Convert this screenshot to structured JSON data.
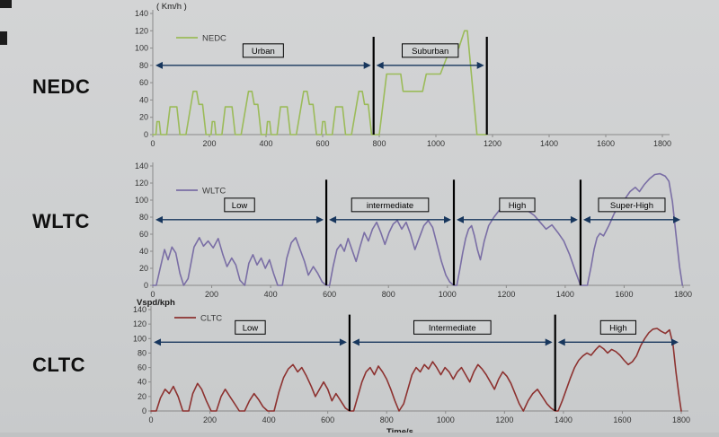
{
  "page": {
    "background": "#cfd1d2",
    "arrow_color": "#17365d",
    "axis_color": "#8a8a8a",
    "text_color": "#1a1a1a"
  },
  "chart_data": [
    {
      "type": "line",
      "side_label": "NEDC",
      "legend": "NEDC",
      "line_color": "#9bbb59",
      "ylabel": "( Km/h )",
      "xlabel": "",
      "xlim": [
        0,
        1800
      ],
      "ylim": [
        0,
        140
      ],
      "x_tick_step": 200,
      "y_tick_step": 20,
      "grid": false,
      "legend_position": "top-left-inside",
      "arrow_level": 80,
      "divider_top": 113,
      "dividers": [
        780,
        1180
      ],
      "phases": [
        {
          "label": "Urban",
          "start": 0,
          "end": 780
        },
        {
          "label": "Suburban",
          "start": 780,
          "end": 1180
        }
      ],
      "points": [
        [
          0,
          0
        ],
        [
          11,
          0
        ],
        [
          15,
          15
        ],
        [
          23,
          15
        ],
        [
          28,
          0
        ],
        [
          49,
          0
        ],
        [
          61,
          32
        ],
        [
          85,
          32
        ],
        [
          96,
          0
        ],
        [
          117,
          0
        ],
        [
          143,
          50
        ],
        [
          155,
          50
        ],
        [
          163,
          35
        ],
        [
          176,
          35
        ],
        [
          188,
          0
        ],
        [
          195,
          0
        ],
        [
          206,
          0
        ],
        [
          210,
          15
        ],
        [
          218,
          15
        ],
        [
          223,
          0
        ],
        [
          244,
          0
        ],
        [
          256,
          32
        ],
        [
          280,
          32
        ],
        [
          291,
          0
        ],
        [
          312,
          0
        ],
        [
          338,
          50
        ],
        [
          350,
          50
        ],
        [
          358,
          35
        ],
        [
          371,
          35
        ],
        [
          383,
          0
        ],
        [
          390,
          0
        ],
        [
          401,
          0
        ],
        [
          405,
          15
        ],
        [
          413,
          15
        ],
        [
          418,
          0
        ],
        [
          439,
          0
        ],
        [
          451,
          32
        ],
        [
          475,
          32
        ],
        [
          486,
          0
        ],
        [
          507,
          0
        ],
        [
          533,
          50
        ],
        [
          545,
          50
        ],
        [
          553,
          35
        ],
        [
          566,
          35
        ],
        [
          578,
          0
        ],
        [
          585,
          0
        ],
        [
          596,
          0
        ],
        [
          600,
          15
        ],
        [
          608,
          15
        ],
        [
          613,
          0
        ],
        [
          634,
          0
        ],
        [
          646,
          32
        ],
        [
          670,
          32
        ],
        [
          681,
          0
        ],
        [
          702,
          0
        ],
        [
          728,
          50
        ],
        [
          740,
          50
        ],
        [
          748,
          35
        ],
        [
          761,
          35
        ],
        [
          773,
          0
        ],
        [
          780,
          0
        ],
        [
          800,
          0
        ],
        [
          826,
          70
        ],
        [
          876,
          70
        ],
        [
          884,
          50
        ],
        [
          953,
          50
        ],
        [
          966,
          70
        ],
        [
          1016,
          70
        ],
        [
          1051,
          100
        ],
        [
          1081,
          100
        ],
        [
          1101,
          120
        ],
        [
          1111,
          120
        ],
        [
          1145,
          0
        ],
        [
          1180,
          0
        ]
      ]
    },
    {
      "type": "line",
      "side_label": "WLTC",
      "legend": "WLTC",
      "line_color": "#7a6ea5",
      "ylabel": "",
      "xlabel": "",
      "xlim": [
        0,
        1800
      ],
      "ylim": [
        0,
        140
      ],
      "x_tick_step": 200,
      "y_tick_step": 20,
      "grid": false,
      "legend_position": "top-left-inside",
      "arrow_level": 77,
      "divider_top": 124,
      "dividers": [
        589,
        1022,
        1452
      ],
      "phases": [
        {
          "label": "Low",
          "start": 0,
          "end": 589
        },
        {
          "label": "intermediate",
          "start": 589,
          "end": 1022
        },
        {
          "label": "High",
          "start": 1022,
          "end": 1452
        },
        {
          "label": "Super-High",
          "start": 1452,
          "end": 1800
        }
      ],
      "points": [
        [
          0,
          0
        ],
        [
          12,
          0
        ],
        [
          25,
          20
        ],
        [
          40,
          42
        ],
        [
          52,
          30
        ],
        [
          65,
          45
        ],
        [
          78,
          38
        ],
        [
          92,
          14
        ],
        [
          105,
          0
        ],
        [
          120,
          8
        ],
        [
          140,
          45
        ],
        [
          158,
          56
        ],
        [
          172,
          46
        ],
        [
          188,
          52
        ],
        [
          205,
          44
        ],
        [
          222,
          55
        ],
        [
          238,
          36
        ],
        [
          252,
          22
        ],
        [
          268,
          32
        ],
        [
          282,
          24
        ],
        [
          296,
          6
        ],
        [
          312,
          0
        ],
        [
          326,
          26
        ],
        [
          340,
          36
        ],
        [
          354,
          24
        ],
        [
          368,
          32
        ],
        [
          382,
          20
        ],
        [
          396,
          30
        ],
        [
          410,
          14
        ],
        [
          424,
          0
        ],
        [
          440,
          0
        ],
        [
          455,
          32
        ],
        [
          470,
          50
        ],
        [
          485,
          56
        ],
        [
          500,
          42
        ],
        [
          515,
          28
        ],
        [
          528,
          12
        ],
        [
          545,
          22
        ],
        [
          560,
          14
        ],
        [
          575,
          4
        ],
        [
          589,
          0
        ],
        [
          600,
          0
        ],
        [
          612,
          22
        ],
        [
          625,
          42
        ],
        [
          638,
          48
        ],
        [
          650,
          40
        ],
        [
          663,
          55
        ],
        [
          676,
          42
        ],
        [
          690,
          28
        ],
        [
          704,
          46
        ],
        [
          718,
          62
        ],
        [
          732,
          52
        ],
        [
          746,
          66
        ],
        [
          760,
          74
        ],
        [
          774,
          62
        ],
        [
          788,
          48
        ],
        [
          802,
          62
        ],
        [
          816,
          72
        ],
        [
          830,
          76
        ],
        [
          845,
          66
        ],
        [
          860,
          74
        ],
        [
          875,
          60
        ],
        [
          890,
          42
        ],
        [
          905,
          56
        ],
        [
          920,
          70
        ],
        [
          935,
          76
        ],
        [
          950,
          68
        ],
        [
          965,
          48
        ],
        [
          980,
          28
        ],
        [
          995,
          12
        ],
        [
          1008,
          4
        ],
        [
          1022,
          0
        ],
        [
          1032,
          0
        ],
        [
          1042,
          18
        ],
        [
          1052,
          38
        ],
        [
          1062,
          55
        ],
        [
          1072,
          66
        ],
        [
          1082,
          70
        ],
        [
          1092,
          58
        ],
        [
          1102,
          42
        ],
        [
          1112,
          30
        ],
        [
          1125,
          52
        ],
        [
          1140,
          70
        ],
        [
          1158,
          80
        ],
        [
          1176,
          88
        ],
        [
          1195,
          93
        ],
        [
          1215,
          96
        ],
        [
          1235,
          97
        ],
        [
          1255,
          92
        ],
        [
          1275,
          87
        ],
        [
          1295,
          82
        ],
        [
          1315,
          74
        ],
        [
          1335,
          66
        ],
        [
          1355,
          71
        ],
        [
          1375,
          62
        ],
        [
          1395,
          52
        ],
        [
          1415,
          36
        ],
        [
          1435,
          16
        ],
        [
          1452,
          0
        ],
        [
          1460,
          0
        ],
        [
          1475,
          0
        ],
        [
          1488,
          22
        ],
        [
          1498,
          42
        ],
        [
          1508,
          56
        ],
        [
          1518,
          61
        ],
        [
          1530,
          58
        ],
        [
          1548,
          70
        ],
        [
          1566,
          84
        ],
        [
          1584,
          95
        ],
        [
          1602,
          101
        ],
        [
          1620,
          110
        ],
        [
          1638,
          115
        ],
        [
          1652,
          110
        ],
        [
          1668,
          118
        ],
        [
          1686,
          125
        ],
        [
          1704,
          130
        ],
        [
          1722,
          131
        ],
        [
          1740,
          128
        ],
        [
          1752,
          122
        ],
        [
          1764,
          98
        ],
        [
          1776,
          60
        ],
        [
          1788,
          22
        ],
        [
          1798,
          0
        ]
      ]
    },
    {
      "type": "line",
      "side_label": "CLTC",
      "legend": "CLTC",
      "line_color": "#8d3230",
      "ylabel": "Vspd/kph",
      "xlabel": "Time/s",
      "xlim": [
        0,
        1800
      ],
      "ylim": [
        0,
        140
      ],
      "x_tick_step": 200,
      "y_tick_step": 20,
      "grid": false,
      "legend_position": "top-left-inside",
      "arrow_level": 95,
      "divider_top": 133,
      "dividers": [
        674,
        1372
      ],
      "phases": [
        {
          "label": "Low",
          "start": 0,
          "end": 674
        },
        {
          "label": "Intermediate",
          "start": 674,
          "end": 1372
        },
        {
          "label": "High",
          "start": 1372,
          "end": 1800
        }
      ],
      "points": [
        [
          0,
          0
        ],
        [
          18,
          0
        ],
        [
          32,
          18
        ],
        [
          48,
          30
        ],
        [
          62,
          24
        ],
        [
          76,
          34
        ],
        [
          92,
          20
        ],
        [
          108,
          0
        ],
        [
          128,
          0
        ],
        [
          142,
          24
        ],
        [
          158,
          38
        ],
        [
          172,
          30
        ],
        [
          188,
          14
        ],
        [
          204,
          0
        ],
        [
          222,
          0
        ],
        [
          238,
          20
        ],
        [
          252,
          30
        ],
        [
          268,
          20
        ],
        [
          284,
          10
        ],
        [
          300,
          0
        ],
        [
          318,
          0
        ],
        [
          334,
          14
        ],
        [
          350,
          24
        ],
        [
          365,
          16
        ],
        [
          380,
          6
        ],
        [
          396,
          0
        ],
        [
          418,
          0
        ],
        [
          434,
          26
        ],
        [
          450,
          46
        ],
        [
          466,
          58
        ],
        [
          482,
          64
        ],
        [
          498,
          54
        ],
        [
          512,
          60
        ],
        [
          528,
          48
        ],
        [
          544,
          34
        ],
        [
          558,
          20
        ],
        [
          572,
          30
        ],
        [
          586,
          40
        ],
        [
          600,
          30
        ],
        [
          614,
          14
        ],
        [
          628,
          24
        ],
        [
          644,
          14
        ],
        [
          660,
          4
        ],
        [
          674,
          0
        ],
        [
          688,
          0
        ],
        [
          702,
          20
        ],
        [
          716,
          40
        ],
        [
          730,
          54
        ],
        [
          744,
          60
        ],
        [
          758,
          50
        ],
        [
          772,
          62
        ],
        [
          786,
          54
        ],
        [
          800,
          44
        ],
        [
          814,
          30
        ],
        [
          828,
          14
        ],
        [
          842,
          0
        ],
        [
          858,
          10
        ],
        [
          872,
          30
        ],
        [
          886,
          50
        ],
        [
          900,
          60
        ],
        [
          914,
          54
        ],
        [
          928,
          64
        ],
        [
          942,
          58
        ],
        [
          956,
          68
        ],
        [
          970,
          60
        ],
        [
          984,
          50
        ],
        [
          998,
          60
        ],
        [
          1012,
          54
        ],
        [
          1026,
          44
        ],
        [
          1040,
          54
        ],
        [
          1054,
          60
        ],
        [
          1068,
          50
        ],
        [
          1082,
          40
        ],
        [
          1096,
          54
        ],
        [
          1110,
          64
        ],
        [
          1124,
          58
        ],
        [
          1138,
          50
        ],
        [
          1152,
          40
        ],
        [
          1166,
          30
        ],
        [
          1180,
          44
        ],
        [
          1194,
          54
        ],
        [
          1208,
          48
        ],
        [
          1222,
          38
        ],
        [
          1236,
          24
        ],
        [
          1250,
          10
        ],
        [
          1264,
          0
        ],
        [
          1280,
          14
        ],
        [
          1296,
          24
        ],
        [
          1312,
          30
        ],
        [
          1328,
          20
        ],
        [
          1344,
          10
        ],
        [
          1358,
          4
        ],
        [
          1372,
          0
        ],
        [
          1382,
          0
        ],
        [
          1396,
          14
        ],
        [
          1410,
          30
        ],
        [
          1424,
          46
        ],
        [
          1438,
          60
        ],
        [
          1452,
          70
        ],
        [
          1466,
          76
        ],
        [
          1480,
          80
        ],
        [
          1494,
          77
        ],
        [
          1508,
          84
        ],
        [
          1522,
          90
        ],
        [
          1536,
          86
        ],
        [
          1550,
          80
        ],
        [
          1564,
          85
        ],
        [
          1578,
          82
        ],
        [
          1592,
          77
        ],
        [
          1606,
          70
        ],
        [
          1620,
          64
        ],
        [
          1634,
          68
        ],
        [
          1648,
          76
        ],
        [
          1662,
          90
        ],
        [
          1676,
          100
        ],
        [
          1690,
          108
        ],
        [
          1704,
          113
        ],
        [
          1718,
          114
        ],
        [
          1732,
          110
        ],
        [
          1746,
          107
        ],
        [
          1760,
          112
        ],
        [
          1772,
          92
        ],
        [
          1782,
          54
        ],
        [
          1792,
          22
        ],
        [
          1800,
          0
        ]
      ]
    }
  ]
}
